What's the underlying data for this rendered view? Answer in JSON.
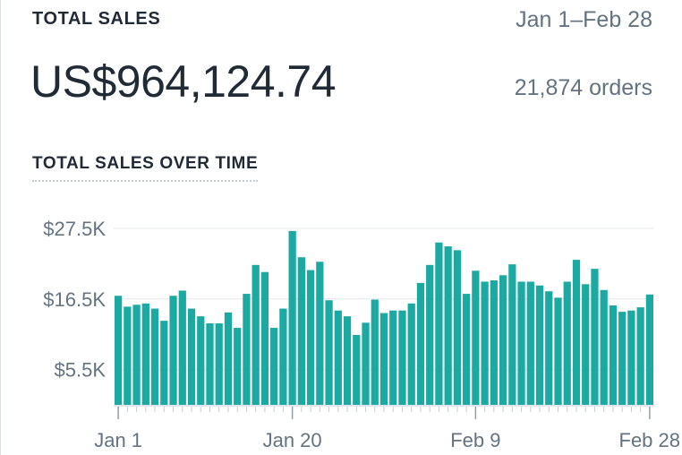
{
  "card": {
    "title": "TOTAL SALES",
    "date_range": "Jan 1–Feb 28",
    "total": "US$964,124.74",
    "orders": "21,874 orders",
    "chart_title": "TOTAL SALES OVER TIME"
  },
  "colors": {
    "bar": "#1ba9a2",
    "grid": "#e3e6ea",
    "axis_text": "#637381"
  },
  "chart_data": {
    "type": "bar",
    "title": "TOTAL SALES OVER TIME",
    "xlabel": "",
    "ylabel": "",
    "ylim": [
      0,
      27500
    ],
    "grid": true,
    "y_ticks": [
      {
        "value": 5500,
        "label": "$5.5K"
      },
      {
        "value": 16500,
        "label": "$16.5K"
      },
      {
        "value": 27500,
        "label": "$27.5K"
      }
    ],
    "x_ticks": [
      {
        "index": 0,
        "label": "Jan 1"
      },
      {
        "index": 19,
        "label": "Jan 20"
      },
      {
        "index": 39,
        "label": "Feb 9"
      },
      {
        "index": 58,
        "label": "Feb 28"
      }
    ],
    "categories": [
      "Jan 1",
      "Jan 2",
      "Jan 3",
      "Jan 4",
      "Jan 5",
      "Jan 6",
      "Jan 7",
      "Jan 8",
      "Jan 9",
      "Jan 10",
      "Jan 11",
      "Jan 12",
      "Jan 13",
      "Jan 14",
      "Jan 15",
      "Jan 16",
      "Jan 17",
      "Jan 18",
      "Jan 19",
      "Jan 20",
      "Jan 21",
      "Jan 22",
      "Jan 23",
      "Jan 24",
      "Jan 25",
      "Jan 26",
      "Jan 27",
      "Jan 28",
      "Jan 29",
      "Jan 30",
      "Jan 31",
      "Feb 1",
      "Feb 2",
      "Feb 3",
      "Feb 4",
      "Feb 5",
      "Feb 6",
      "Feb 7",
      "Feb 8",
      "Feb 9",
      "Feb 10",
      "Feb 11",
      "Feb 12",
      "Feb 13",
      "Feb 14",
      "Feb 15",
      "Feb 16",
      "Feb 17",
      "Feb 18",
      "Feb 19",
      "Feb 20",
      "Feb 21",
      "Feb 22",
      "Feb 23",
      "Feb 24",
      "Feb 25",
      "Feb 26",
      "Feb 27",
      "Feb 28"
    ],
    "values": [
      17000,
      15300,
      15600,
      15800,
      15000,
      13100,
      17000,
      17800,
      15000,
      13800,
      12700,
      12700,
      14400,
      12000,
      17300,
      21800,
      20700,
      12000,
      15000,
      27100,
      23000,
      21000,
      22300,
      16300,
      14700,
      13800,
      10900,
      12800,
      16400,
      14300,
      14700,
      14700,
      15800,
      19000,
      21800,
      25300,
      24700,
      24100,
      17300,
      20900,
      19200,
      19400,
      20200,
      21900,
      19200,
      19200,
      18600,
      17700,
      16700,
      19200,
      22600,
      18800,
      21200,
      17900,
      15500,
      14500,
      14700,
      15200,
      17200
    ]
  }
}
